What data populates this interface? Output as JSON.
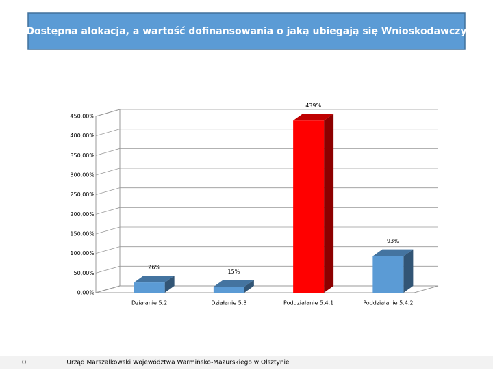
{
  "slide": {
    "page_number": "0",
    "footer": "Urząd Marszałkowski Województwa Warmińsko-Mazurskiego w Olsztynie"
  },
  "chart_data": {
    "type": "bar3d",
    "title": "Dostępna alokacja, a wartość dofinansowania o jaką ubiegają się Wnioskodawczy",
    "categories": [
      "Działanie 5.2",
      "Działanie 5.3",
      "Poddziałanie 5.4.1",
      "Poddziałanie 5.4.2"
    ],
    "values": [
      26,
      15,
      439,
      93
    ],
    "value_labels": [
      "26%",
      "15%",
      "439%",
      "93%"
    ],
    "colors": [
      "#5b9bd5",
      "#5b9bd5",
      "#ff0000",
      "#5b9bd5"
    ],
    "ylim": [
      0,
      450
    ],
    "yticks": [
      {
        "value": 0,
        "label": "0,00%"
      },
      {
        "value": 50,
        "label": "50,00%"
      },
      {
        "value": 100,
        "label": "100,00%"
      },
      {
        "value": 150,
        "label": "150,00%"
      },
      {
        "value": 200,
        "label": "200,00%"
      },
      {
        "value": 250,
        "label": "250,00%"
      },
      {
        "value": 300,
        "label": "300,00%"
      },
      {
        "value": 350,
        "label": "350,00%"
      },
      {
        "value": 400,
        "label": "400,00%"
      },
      {
        "value": 450,
        "label": "450,00%"
      }
    ],
    "grid": true
  }
}
